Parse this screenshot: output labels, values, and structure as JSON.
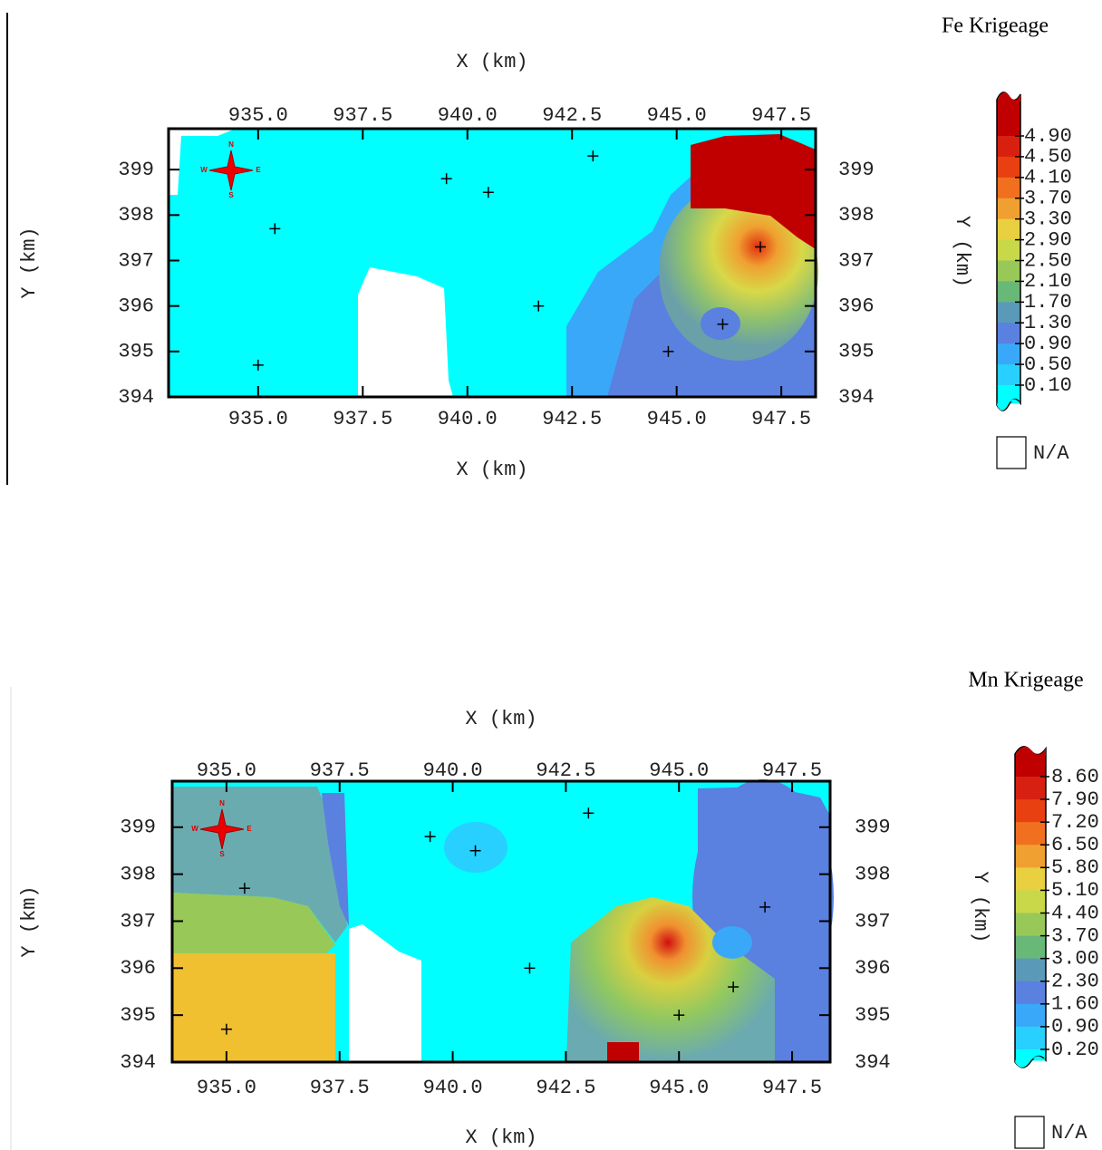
{
  "chart_data": [
    {
      "type": "map",
      "title": "Fe Krigeage",
      "x_label": "X (km)",
      "y_label": "Y (km)",
      "colorbar_label": "Y (km)",
      "na_label": "N/A",
      "compass": [
        "N",
        "E",
        "S",
        "W"
      ],
      "xlim": [
        932.86,
        948.32
      ],
      "xticks": [
        {
          "value": 935,
          "label": "935.0"
        },
        {
          "value": 937.5,
          "label": "937.5"
        },
        {
          "value": 940,
          "label": "940.0"
        },
        {
          "value": 942.5,
          "label": "942.5"
        },
        {
          "value": 945,
          "label": "945.0"
        },
        {
          "value": 947.5,
          "label": "947.5"
        }
      ],
      "ylim": [
        394,
        399.9
      ],
      "yticks": [
        394,
        395,
        396,
        397,
        398,
        399
      ],
      "x": [
        935.0,
        935.4,
        939.5,
        940.5,
        941.7,
        943.0,
        944.8,
        946.1,
        947.0
      ],
      "y": [
        394.7,
        397.7,
        398.8,
        398.5,
        396.0,
        399.3,
        395.0,
        395.6,
        397.3
      ],
      "levels": [
        {
          "value": 4.9,
          "label": "4.90"
        },
        {
          "value": 4.5,
          "label": "4.50"
        },
        {
          "value": 4.1,
          "label": "4.10"
        },
        {
          "value": 3.7,
          "label": "3.70"
        },
        {
          "value": 3.3,
          "label": "3.30"
        },
        {
          "value": 2.9,
          "label": "2.90"
        },
        {
          "value": 2.5,
          "label": "2.50"
        },
        {
          "value": 2.1,
          "label": "2.10"
        },
        {
          "value": 1.7,
          "label": "1.70"
        },
        {
          "value": 1.3,
          "label": "1.30"
        },
        {
          "value": 0.9,
          "label": "0.90"
        },
        {
          "value": 0.5,
          "label": "0.50"
        },
        {
          "value": 0.1,
          "label": "0.10"
        }
      ],
      "level_colors": [
        "#c00000",
        "#d82010",
        "#e84010",
        "#f07020",
        "#f0a030",
        "#e8d040",
        "#c8d848",
        "#98c858",
        "#68b878",
        "#5a9ab8",
        "#5a80e0",
        "#3aa8f8",
        "#28d0ff",
        "#00ffff"
      ]
    },
    {
      "type": "map",
      "title": "Mn Krigeage",
      "x_label": "X (km)",
      "y_label": "Y (km)",
      "colorbar_label": "Y (km)",
      "na_label": "N/A",
      "compass": [
        "N",
        "E",
        "S",
        "W"
      ],
      "xlim": [
        933.8,
        948.34
      ],
      "xticks": [
        {
          "value": 935,
          "label": "935.0"
        },
        {
          "value": 937.5,
          "label": "937.5"
        },
        {
          "value": 940,
          "label": "940.0"
        },
        {
          "value": 942.5,
          "label": "942.5"
        },
        {
          "value": 945,
          "label": "945.0"
        },
        {
          "value": 947.5,
          "label": "947.5"
        }
      ],
      "ylim": [
        394,
        399.98
      ],
      "yticks": [
        394,
        395,
        396,
        397,
        398,
        399
      ],
      "x": [
        935.0,
        935.4,
        939.5,
        940.5,
        941.7,
        943.0,
        945.0,
        946.2,
        946.9
      ],
      "y": [
        394.7,
        397.7,
        398.8,
        398.5,
        396.0,
        399.3,
        395.0,
        395.6,
        397.3
      ],
      "levels": [
        {
          "value": 8.6,
          "label": "8.60"
        },
        {
          "value": 7.9,
          "label": "7.90"
        },
        {
          "value": 7.2,
          "label": "7.20"
        },
        {
          "value": 6.5,
          "label": "6.50"
        },
        {
          "value": 5.8,
          "label": "5.80"
        },
        {
          "value": 5.1,
          "label": "5.10"
        },
        {
          "value": 4.4,
          "label": "4.40"
        },
        {
          "value": 3.7,
          "label": "3.70"
        },
        {
          "value": 3.0,
          "label": "3.00"
        },
        {
          "value": 2.3,
          "label": "2.30"
        },
        {
          "value": 1.6,
          "label": "1.60"
        },
        {
          "value": 0.9,
          "label": "0.90"
        },
        {
          "value": 0.2,
          "label": "0.20"
        }
      ],
      "level_colors": [
        "#c00000",
        "#d82010",
        "#e84010",
        "#f07020",
        "#f0a030",
        "#e8d040",
        "#c8d848",
        "#98c858",
        "#68b878",
        "#5a9ab8",
        "#5a80e0",
        "#3aa8f8",
        "#28d0ff",
        "#00ffff"
      ]
    }
  ]
}
